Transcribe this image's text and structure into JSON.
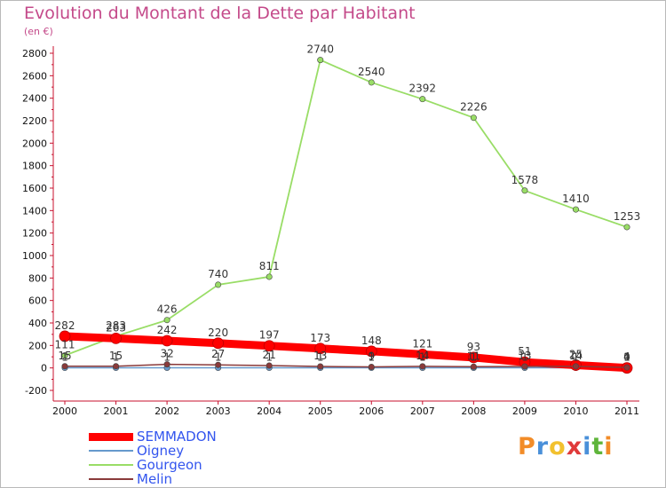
{
  "title": "Evolution du Montant de la Dette par Habitant",
  "subtitle": "(en €)",
  "logo": {
    "text": "Proxiti",
    "letter_colors": [
      "#f28c28",
      "#4a90d9",
      "#f2c12e",
      "#e03a3a",
      "#4a90d9",
      "#5fb53b",
      "#f28c28"
    ]
  },
  "chart_data": {
    "type": "line",
    "title": "Evolution du Montant de la Dette par Habitant",
    "subtitle": "(en €)",
    "x": [
      "2000",
      "2001",
      "2002",
      "2003",
      "2004",
      "2005",
      "2006",
      "2007",
      "2008",
      "2009",
      "2010",
      "2011"
    ],
    "ylim": [
      -200,
      2800
    ],
    "yticks": [
      -200,
      0,
      200,
      400,
      600,
      800,
      1000,
      1200,
      1400,
      1600,
      1800,
      2000,
      2200,
      2400,
      2600,
      2800
    ],
    "grid": false,
    "legend_position": "bottom-left",
    "series": [
      {
        "name": "SEMMADON",
        "color": "#ff0000",
        "values": [
          282,
          263,
          242,
          220,
          197,
          173,
          148,
          121,
          93,
          51,
          25,
          0
        ]
      },
      {
        "name": "Oigney",
        "color": "#6699cc",
        "values": [
          1,
          1,
          1,
          1,
          1,
          1,
          1,
          1,
          1,
          1,
          1,
          1
        ]
      },
      {
        "name": "Gourgeon",
        "color": "#99dd66",
        "values": [
          111,
          283,
          426,
          740,
          811,
          2740,
          2540,
          2392,
          2226,
          1578,
          1410,
          1253
        ]
      },
      {
        "name": "Melin",
        "color": "#8a3a3a",
        "values": [
          15,
          15,
          32,
          27,
          21,
          13,
          9,
          14,
          11,
          13,
          14,
          4
        ]
      }
    ]
  }
}
